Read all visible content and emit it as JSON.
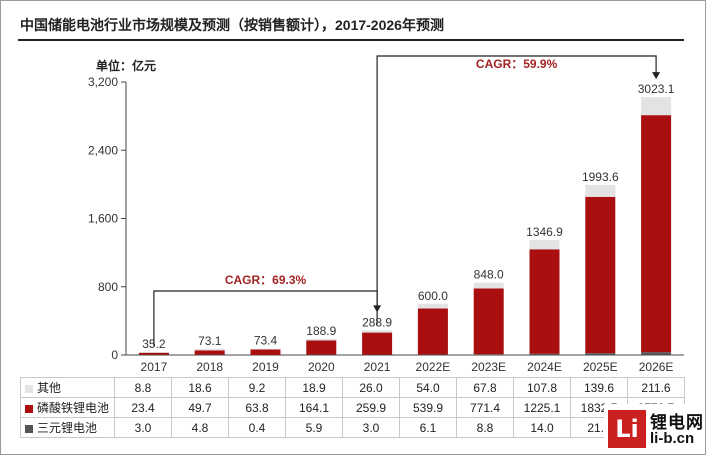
{
  "title": "中国储能电池行业市场规模及预测（按销售额计），2017-2026年预测",
  "unit_label": "单位：亿元",
  "colors": {
    "other": "#e3e3e3",
    "lfp": "#a90f0f",
    "ternary": "#555555",
    "annotation": "#a32323"
  },
  "annotations": [
    {
      "label": "CAGR：69.3%",
      "from": "2017",
      "to": "2021"
    },
    {
      "label": "CAGR：59.9%",
      "from": "2021",
      "to": "2026E"
    }
  ],
  "table": {
    "rows": [
      {
        "label": "其他",
        "series": "other"
      },
      {
        "label": "磷酸铁锂电池",
        "series": "lfp"
      },
      {
        "label": "三元锂电池",
        "series": "ternary"
      }
    ]
  },
  "logo": {
    "mark": "Li",
    "name": "锂电网",
    "url": "li-b.cn"
  },
  "chart_data": {
    "type": "bar",
    "stacked": true,
    "categories": [
      "2017",
      "2018",
      "2019",
      "2020",
      "2021",
      "2022E",
      "2023E",
      "2024E",
      "2025E",
      "2026E"
    ],
    "series": [
      {
        "name": "三元锂电池",
        "key": "ternary",
        "values": [
          3.0,
          4.8,
          0.4,
          5.9,
          3.0,
          6.1,
          8.8,
          14.0,
          21.4,
          32.8
        ]
      },
      {
        "name": "磷酸铁锂电池",
        "key": "lfp",
        "values": [
          23.4,
          49.7,
          63.8,
          164.1,
          259.9,
          539.9,
          771.4,
          1225.1,
          1832.7,
          2778.7
        ]
      },
      {
        "name": "其他",
        "key": "other",
        "values": [
          8.8,
          18.6,
          9.2,
          18.9,
          26.0,
          54.0,
          67.8,
          107.8,
          139.6,
          211.6
        ]
      }
    ],
    "totals": [
      35.2,
      73.1,
      73.4,
      188.9,
      288.9,
      600.0,
      848.0,
      1346.9,
      1993.6,
      3023.1
    ],
    "total_labels": [
      "35.2",
      "73.1",
      "73.4",
      "188.9",
      "288.9",
      "600.0",
      "848.0",
      "1346.9",
      "1993.6",
      "3023.1"
    ],
    "y_ticks": [
      "0",
      "800",
      "1,600",
      "2,400",
      "3,200"
    ],
    "ylim": [
      0,
      3200
    ],
    "ylabel": "单位：亿元",
    "grid": false,
    "legend": "table-below"
  }
}
